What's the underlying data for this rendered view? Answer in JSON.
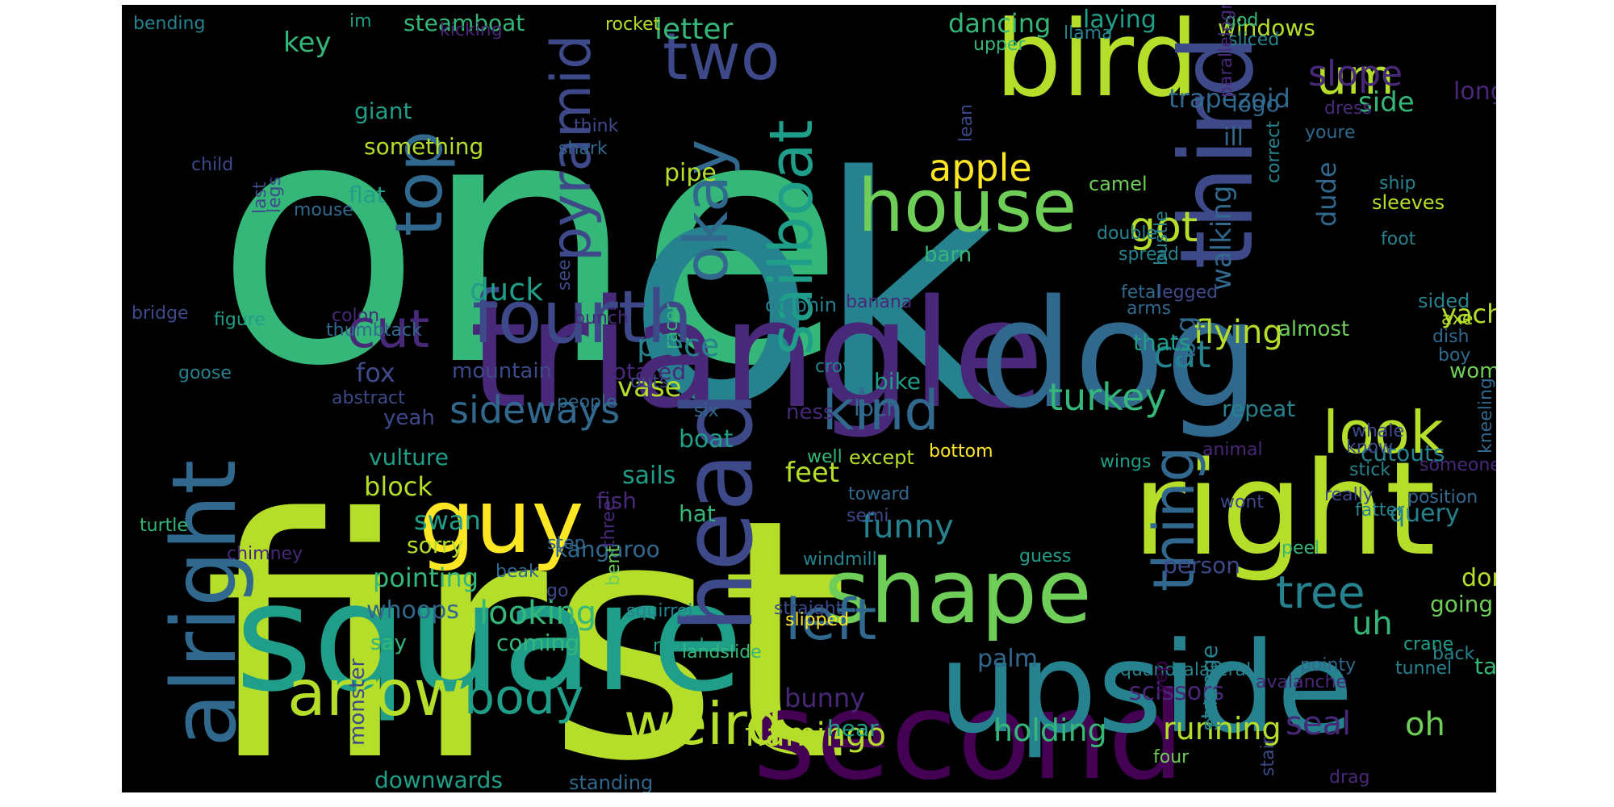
{
  "palette": {
    "background": "#000000",
    "page": "#ffffff",
    "c0": "#440154",
    "c1": "#482878",
    "c2": "#3e4989",
    "c3": "#31688e",
    "c4": "#26828e",
    "c5": "#1f9e89",
    "c6": "#35b779",
    "c7": "#6ece58",
    "c8": "#b5de2b",
    "c9": "#fde725"
  },
  "words": [
    {
      "text": "one",
      "color": "c6"
    },
    {
      "text": "ok",
      "color": "c4"
    },
    {
      "text": "first",
      "color": "c8"
    },
    {
      "text": "triangle",
      "color": "c1"
    },
    {
      "text": "dog",
      "color": "c3"
    },
    {
      "text": "bird",
      "color": "c8"
    },
    {
      "text": "third",
      "color": "c2"
    },
    {
      "text": "square",
      "color": "c5"
    },
    {
      "text": "second",
      "color": "c0"
    },
    {
      "text": "upside",
      "color": "c4"
    },
    {
      "text": "right",
      "color": "c8"
    },
    {
      "text": "alright",
      "color": "c3"
    },
    {
      "text": "head",
      "color": "c2"
    },
    {
      "text": "guy",
      "color": "c9"
    },
    {
      "text": "house",
      "color": "c7"
    },
    {
      "text": "shape",
      "color": "c7"
    },
    {
      "text": "sailboat",
      "color": "c5"
    },
    {
      "text": "two",
      "color": "c2"
    },
    {
      "text": "um",
      "color": "c8"
    },
    {
      "text": "fourth",
      "color": "c2"
    },
    {
      "text": "okay",
      "color": "c3"
    },
    {
      "text": "pyramid",
      "color": "c2"
    },
    {
      "text": "top",
      "color": "c3"
    },
    {
      "text": "look",
      "color": "c8"
    },
    {
      "text": "cut",
      "color": "c1"
    },
    {
      "text": "arrow",
      "color": "c8"
    },
    {
      "text": "weird",
      "color": "c8"
    },
    {
      "text": "thing",
      "color": "c3"
    },
    {
      "text": "left",
      "color": "c3"
    },
    {
      "text": "kind",
      "color": "c3"
    },
    {
      "text": "body",
      "color": "c5"
    },
    {
      "text": "tree",
      "color": "c4"
    },
    {
      "text": "apple",
      "color": "c9"
    },
    {
      "text": "got",
      "color": "c8"
    },
    {
      "text": "slope",
      "color": "c1"
    },
    {
      "text": "turkey",
      "color": "c6"
    },
    {
      "text": "sideways",
      "color": "c3"
    },
    {
      "text": "piece",
      "color": "c4"
    },
    {
      "text": "duck",
      "color": "c5"
    },
    {
      "text": "cat",
      "color": "c4"
    },
    {
      "text": "funny",
      "color": "c4"
    },
    {
      "text": "flamingo",
      "color": "c8"
    },
    {
      "text": "holding",
      "color": "c6"
    },
    {
      "text": "running",
      "color": "c8"
    },
    {
      "text": "seal",
      "color": "c1"
    },
    {
      "text": "oh",
      "color": "c7"
    },
    {
      "text": "flying",
      "color": "c8"
    },
    {
      "text": "looking",
      "color": "c6"
    },
    {
      "text": "letter",
      "color": "c6"
    },
    {
      "text": "dancing",
      "color": "c6"
    },
    {
      "text": "laying",
      "color": "c5"
    },
    {
      "text": "windows",
      "color": "c8"
    },
    {
      "text": "trapezoid",
      "color": "c3"
    },
    {
      "text": "side",
      "color": "c6"
    },
    {
      "text": "long",
      "color": "c1"
    },
    {
      "text": "steamboat",
      "color": "c6"
    },
    {
      "text": "key",
      "color": "c6"
    },
    {
      "text": "giant",
      "color": "c5"
    },
    {
      "text": "something",
      "color": "c8"
    },
    {
      "text": "flat",
      "color": "c5"
    },
    {
      "text": "pipe",
      "color": "c8"
    },
    {
      "text": "dude",
      "color": "c3"
    },
    {
      "text": "big",
      "color": "c3"
    },
    {
      "text": "walking",
      "color": "c3"
    },
    {
      "text": "logo",
      "color": "c3"
    },
    {
      "text": "ill",
      "color": "c3"
    },
    {
      "text": "mountain",
      "color": "c2"
    },
    {
      "text": "rotated",
      "color": "c1"
    },
    {
      "text": "vase",
      "color": "c8"
    },
    {
      "text": "yeah",
      "color": "c2"
    },
    {
      "text": "fox",
      "color": "c2"
    },
    {
      "text": "vulture",
      "color": "c5"
    },
    {
      "text": "block",
      "color": "c8"
    },
    {
      "text": "boat",
      "color": "c5"
    },
    {
      "text": "sails",
      "color": "c5"
    },
    {
      "text": "fish",
      "color": "c1"
    },
    {
      "text": "feet",
      "color": "c8"
    },
    {
      "text": "hat",
      "color": "c6"
    },
    {
      "text": "thats",
      "color": "c5"
    },
    {
      "text": "almost",
      "color": "c7"
    },
    {
      "text": "woman",
      "color": "c7"
    },
    {
      "text": "yacht",
      "color": "c8"
    },
    {
      "text": "repeat",
      "color": "c4"
    },
    {
      "text": "cutouts",
      "color": "c4"
    },
    {
      "text": "swan",
      "color": "c5"
    },
    {
      "text": "sorry",
      "color": "c8"
    },
    {
      "text": "pointing",
      "color": "c6"
    },
    {
      "text": "whoops",
      "color": "c3"
    },
    {
      "text": "say",
      "color": "c6"
    },
    {
      "text": "kangaroo",
      "color": "c3"
    },
    {
      "text": "coming",
      "color": "c6"
    },
    {
      "text": "downwards",
      "color": "c5"
    },
    {
      "text": "bunny",
      "color": "c1"
    },
    {
      "text": "hear",
      "color": "c5"
    },
    {
      "text": "scissors",
      "color": "c1"
    },
    {
      "text": "strange",
      "color": "c4"
    },
    {
      "text": "person",
      "color": "c2"
    },
    {
      "text": "query",
      "color": "c4"
    },
    {
      "text": "uh",
      "color": "c6"
    },
    {
      "text": "going",
      "color": "c7"
    },
    {
      "text": "dont",
      "color": "c8"
    },
    {
      "text": "tail",
      "color": "c6"
    },
    {
      "text": "palm",
      "color": "c3"
    },
    {
      "text": "standing",
      "color": "c3"
    },
    {
      "text": "monster",
      "color": "c2"
    },
    {
      "text": "ness",
      "color": "c1"
    },
    {
      "text": "loch",
      "color": "c3"
    },
    {
      "text": "bike",
      "color": "c5"
    },
    {
      "text": "barn",
      "color": "c6"
    },
    {
      "text": "camel",
      "color": "c7"
    },
    {
      "text": "double",
      "color": "c4"
    },
    {
      "text": "spread",
      "color": "c4"
    },
    {
      "text": "sleeves",
      "color": "c8"
    },
    {
      "text": "ship",
      "color": "c4"
    },
    {
      "text": "foot",
      "color": "c4"
    },
    {
      "text": "sided",
      "color": "c4"
    },
    {
      "text": "axe",
      "color": "c8"
    },
    {
      "text": "dish",
      "color": "c3"
    },
    {
      "text": "boy",
      "color": "c3"
    },
    {
      "text": "bending",
      "color": "c4"
    },
    {
      "text": "im",
      "color": "c5"
    },
    {
      "text": "kicking",
      "color": "c1"
    },
    {
      "text": "rocket",
      "color": "c8"
    },
    {
      "text": "god",
      "color": "c6"
    },
    {
      "text": "sliced",
      "color": "c4"
    },
    {
      "text": "llama",
      "color": "c4"
    },
    {
      "text": "upper",
      "color": "c6"
    },
    {
      "text": "lean",
      "color": "c2"
    },
    {
      "text": "think",
      "color": "c2"
    },
    {
      "text": "shark",
      "color": "c3"
    },
    {
      "text": "child",
      "color": "c2"
    },
    {
      "text": "mouse",
      "color": "c3"
    },
    {
      "text": "legs",
      "color": "c2"
    },
    {
      "text": "last",
      "color": "c2"
    },
    {
      "text": "see",
      "color": "c2"
    },
    {
      "text": "colon",
      "color": "c1"
    },
    {
      "text": "bridge",
      "color": "c2"
    },
    {
      "text": "figure",
      "color": "c5"
    },
    {
      "text": "thumbtack",
      "color": "c3"
    },
    {
      "text": "bunch",
      "color": "c1"
    },
    {
      "text": "banana",
      "color": "c1"
    },
    {
      "text": "dolphin",
      "color": "c4"
    },
    {
      "text": "crow",
      "color": "c4"
    },
    {
      "text": "racer",
      "color": "c6"
    },
    {
      "text": "outs",
      "color": "c2"
    },
    {
      "text": "goose",
      "color": "c4"
    },
    {
      "text": "abstract",
      "color": "c2"
    },
    {
      "text": "people",
      "color": "c3"
    },
    {
      "text": "six",
      "color": "c3"
    },
    {
      "text": "well",
      "color": "c6"
    },
    {
      "text": "bottom",
      "color": "c9"
    },
    {
      "text": "except",
      "color": "c8"
    },
    {
      "text": "toward",
      "color": "c3"
    },
    {
      "text": "wings",
      "color": "c5"
    },
    {
      "text": "wont",
      "color": "c2"
    },
    {
      "text": "really",
      "color": "c2"
    },
    {
      "text": "fatter",
      "color": "c4"
    },
    {
      "text": "position",
      "color": "c3"
    },
    {
      "text": "turtle",
      "color": "c6"
    },
    {
      "text": "three",
      "color": "c1"
    },
    {
      "text": "semi",
      "color": "c2"
    },
    {
      "text": "chimney",
      "color": "c1"
    },
    {
      "text": "step",
      "color": "c3"
    },
    {
      "text": "windmill",
      "color": "c4"
    },
    {
      "text": "guess",
      "color": "c5"
    },
    {
      "text": "peel",
      "color": "c6"
    },
    {
      "text": "beak",
      "color": "c3"
    },
    {
      "text": "go",
      "color": "c2"
    },
    {
      "text": "bent",
      "color": "c7"
    },
    {
      "text": "straight",
      "color": "c2"
    },
    {
      "text": "slipped",
      "color": "c9"
    },
    {
      "text": "squirrel",
      "color": "c4"
    },
    {
      "text": "rhombus",
      "color": "c5"
    },
    {
      "text": "landslide",
      "color": "c6"
    },
    {
      "text": "quandralateral",
      "color": "c4"
    },
    {
      "text": "pointy",
      "color": "c3"
    },
    {
      "text": "tunnel",
      "color": "c4"
    },
    {
      "text": "back",
      "color": "c4"
    },
    {
      "text": "avalanche",
      "color": "c1"
    },
    {
      "text": "four",
      "color": "c7"
    },
    {
      "text": "drag",
      "color": "c1"
    },
    {
      "text": "stair",
      "color": "c2"
    },
    {
      "text": "pair",
      "color": "c4"
    },
    {
      "text": "yep",
      "color": "c0"
    },
    {
      "text": "crane",
      "color": "c5"
    },
    {
      "text": "whale",
      "color": "c2"
    },
    {
      "text": "know",
      "color": "c2"
    },
    {
      "text": "stick",
      "color": "c4"
    },
    {
      "text": "someone",
      "color": "c1"
    },
    {
      "text": "kneeling",
      "color": "c3"
    },
    {
      "text": "animal",
      "color": "c1"
    },
    {
      "text": "fetal",
      "color": "c3"
    },
    {
      "text": "legged",
      "color": "c2"
    },
    {
      "text": "arms",
      "color": "c3"
    },
    {
      "text": "bustle",
      "color": "c4"
    },
    {
      "text": "correct",
      "color": "c4"
    },
    {
      "text": "dress",
      "color": "c1"
    },
    {
      "text": "youre",
      "color": "c3"
    },
    {
      "text": "parallelogram",
      "color": "c1"
    }
  ]
}
